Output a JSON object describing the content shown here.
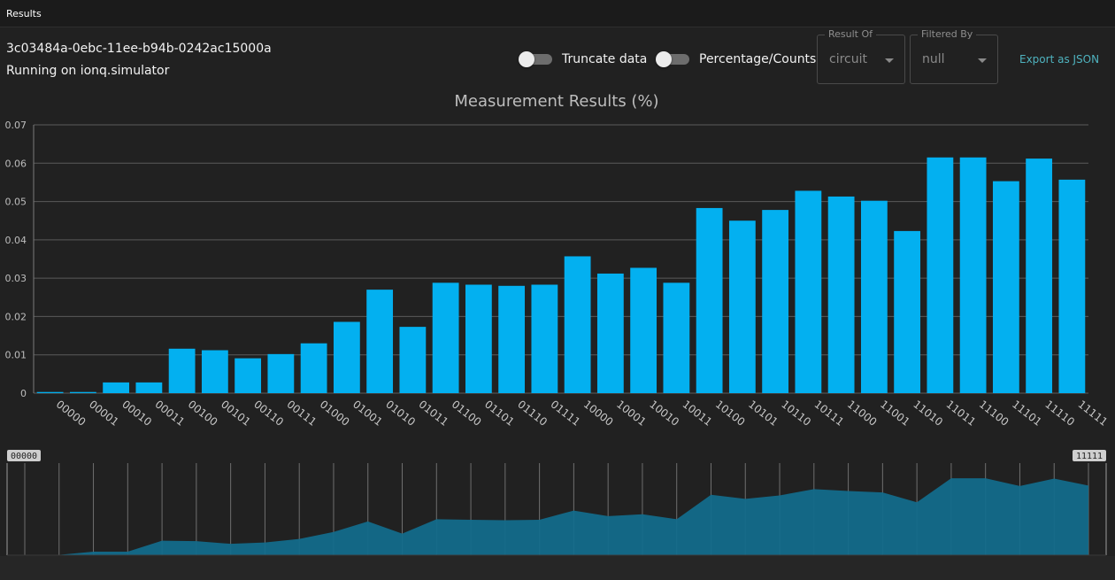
{
  "header": {
    "title": "Results"
  },
  "job": {
    "id": "3c03484a-0ebc-11ee-b94b-0242ac15000a",
    "status": "Running on ionq.simulator"
  },
  "controls": {
    "truncate_label": "Truncate data",
    "percentage_label": "Percentage/Counts",
    "result_of": {
      "legend": "Result Of",
      "value": "circuit"
    },
    "filtered_by": {
      "legend": "Filtered By",
      "value": "null"
    },
    "export_label": "Export as JSON"
  },
  "colors": {
    "bar": "#03b0f0",
    "area": "#136c8b",
    "accent": "#4fb3bf",
    "grid": "#5a5a5a"
  },
  "chart_data": {
    "type": "bar",
    "title": "Measurement Results (%)",
    "xlabel": "",
    "ylabel": "",
    "ylim": [
      0,
      0.07
    ],
    "yticks": [
      0,
      0.01,
      0.02,
      0.03,
      0.04,
      0.05,
      0.06,
      0.07
    ],
    "ytick_labels": [
      "0",
      "0.01",
      "0.02",
      "0.03",
      "0.04",
      "0.05",
      "0.06",
      "0.07"
    ],
    "grid": true,
    "categories": [
      "00000",
      "00001",
      "00010",
      "00011",
      "00100",
      "00101",
      "00110",
      "00111",
      "01000",
      "01001",
      "01010",
      "01011",
      "01100",
      "01101",
      "01110",
      "01111",
      "10000",
      "10001",
      "10010",
      "10011",
      "10100",
      "10101",
      "10110",
      "10111",
      "11000",
      "11001",
      "11010",
      "11011",
      "11100",
      "11101",
      "11110",
      "11111"
    ],
    "values": [
      0.0003,
      0.0003,
      0.0028,
      0.0028,
      0.0116,
      0.0112,
      0.0091,
      0.0102,
      0.013,
      0.0186,
      0.027,
      0.0173,
      0.0288,
      0.0283,
      0.028,
      0.0283,
      0.0357,
      0.0312,
      0.0327,
      0.0288,
      0.0483,
      0.045,
      0.0478,
      0.0528,
      0.0513,
      0.0502,
      0.0423,
      0.0615,
      0.0615,
      0.0553,
      0.0612,
      0.0557
    ]
  },
  "navigator": {
    "start_label": "00000",
    "end_label": "11111"
  }
}
